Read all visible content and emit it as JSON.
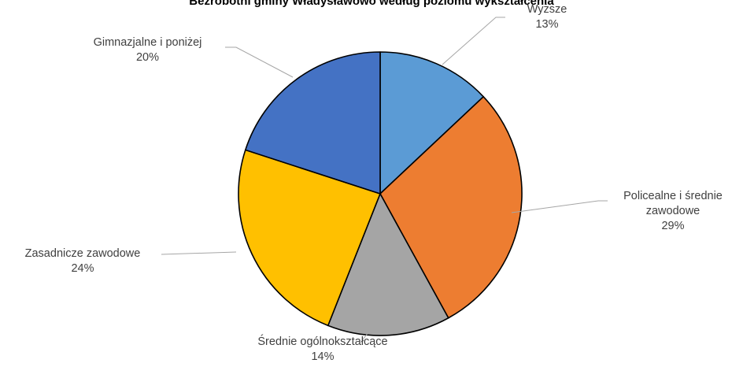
{
  "chart_data": {
    "type": "pie",
    "title": "Bezrobotni gminy Władysławowo według poziomu wykształcenia",
    "legend": "none",
    "slices": [
      {
        "label": "Wyższe",
        "value_label": "13%",
        "value": 13,
        "color": "#5B9BD5"
      },
      {
        "label": "Policealne i średnie zawodowe",
        "label_lines": [
          "Policealne i średnie",
          "zawodowe"
        ],
        "value_label": "29%",
        "value": 29,
        "color": "#ED7D31"
      },
      {
        "label": "Średnie ogólnokształcące",
        "value_label": "14%",
        "value": 14,
        "color": "#A5A5A5"
      },
      {
        "label": "Zasadnicze zawodowe",
        "value_label": "24%",
        "value": 24,
        "color": "#FFC000"
      },
      {
        "label": "Gimnazjalne i poniżej",
        "value_label": "20%",
        "value": 20,
        "color": "#4472C4"
      }
    ]
  }
}
